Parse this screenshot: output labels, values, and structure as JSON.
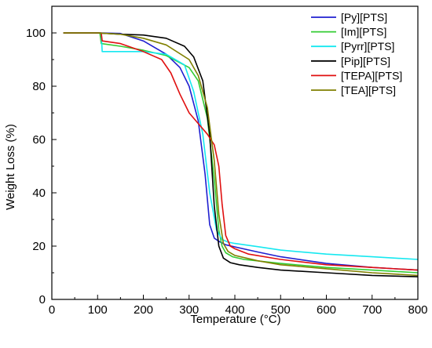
{
  "chart_data": {
    "type": "line",
    "xlabel": "Temperature (°C)",
    "ylabel": "Weight Loss (%)",
    "xlim": [
      0,
      800
    ],
    "ylim": [
      0,
      110
    ],
    "x_ticks": [
      0,
      100,
      200,
      300,
      400,
      500,
      600,
      700,
      800
    ],
    "y_ticks": [
      0,
      20,
      40,
      60,
      80,
      100
    ],
    "grid": false,
    "legend_position": "top-right",
    "series": [
      {
        "name": "[Py][PTS]",
        "color": "#1f1fd0",
        "x": [
          25,
          100,
          150,
          200,
          250,
          280,
          300,
          320,
          335,
          345,
          355,
          365,
          380,
          400,
          450,
          500,
          600,
          700,
          800
        ],
        "y": [
          100,
          100,
          99.8,
          97,
          92,
          87,
          80,
          67,
          47,
          28,
          23,
          21.8,
          20.5,
          19.7,
          17.8,
          16,
          13.5,
          12,
          11
        ]
      },
      {
        "name": "[Im][PTS]",
        "color": "#33cc33",
        "x": [
          25,
          105,
          108,
          150,
          200,
          250,
          300,
          320,
          340,
          355,
          365,
          372,
          380,
          395,
          420,
          500,
          600,
          700,
          800
        ],
        "y": [
          100,
          100,
          96,
          95,
          93.5,
          91.5,
          87,
          82,
          68,
          45,
          26,
          20,
          17.5,
          16,
          15,
          13.5,
          12,
          11,
          10
        ]
      },
      {
        "name": "[Pyrr][PTS]",
        "color": "#16e8f0",
        "x": [
          25,
          108,
          110,
          150,
          200,
          250,
          290,
          310,
          330,
          345,
          360,
          372,
          385,
          400,
          450,
          500,
          600,
          700,
          800
        ],
        "y": [
          100,
          100,
          93,
          93,
          93,
          92,
          88,
          78,
          62,
          40,
          26,
          22.5,
          21.5,
          21,
          19.8,
          18.5,
          17,
          16,
          15
        ]
      },
      {
        "name": "[Pip][PTS]",
        "color": "#000000",
        "x": [
          25,
          100,
          150,
          200,
          250,
          290,
          310,
          330,
          345,
          355,
          365,
          375,
          390,
          410,
          450,
          500,
          600,
          700,
          800
        ],
        "y": [
          100,
          100,
          99.5,
          99.2,
          98,
          95,
          91,
          82,
          62,
          35,
          20,
          15.5,
          13.8,
          13,
          12,
          11,
          10,
          9,
          8.5
        ]
      },
      {
        "name": "[TEPA][PTS]",
        "color": "#e01010",
        "x": [
          25,
          108,
          110,
          150,
          200,
          240,
          260,
          280,
          300,
          320,
          340,
          355,
          365,
          372,
          380,
          390,
          400,
          430,
          500,
          600,
          700,
          800
        ],
        "y": [
          100,
          100,
          97,
          96,
          93,
          90,
          85,
          77,
          70,
          66,
          62,
          58,
          50,
          36,
          24,
          20,
          19,
          17,
          15,
          13,
          12,
          11
        ]
      },
      {
        "name": "[TEA][PTS]",
        "color": "#808000",
        "x": [
          25,
          100,
          150,
          200,
          250,
          300,
          320,
          340,
          355,
          365,
          375,
          385,
          400,
          450,
          500,
          600,
          700,
          800
        ],
        "y": [
          100,
          100,
          99.5,
          98,
          95.5,
          90,
          84,
          72,
          52,
          32,
          21,
          18,
          16.5,
          14.5,
          13,
          11.5,
          10,
          9
        ]
      }
    ]
  }
}
